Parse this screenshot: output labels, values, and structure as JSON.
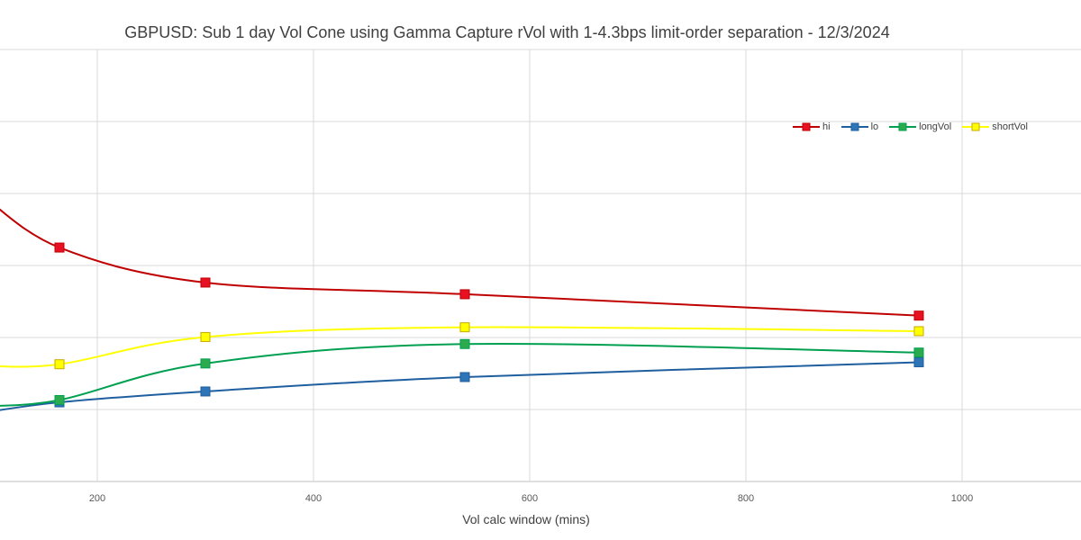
{
  "chart_data": {
    "type": "line",
    "title": "GBPUSD: Sub 1 day Vol Cone using Gamma Capture rVol with 1-4.3bps limit-order separation - 12/3/2024",
    "xlabel": "Vol calc window (mins)",
    "ylabel": "",
    "x_ticks": [
      200,
      400,
      600,
      800,
      1000
    ],
    "xlim": [
      110,
      1110
    ],
    "grid": true,
    "legend_position": "top-right",
    "x": [
      165,
      300,
      540,
      960
    ],
    "series": [
      {
        "name": "hi",
        "color": "#C00000",
        "marker_fill": "#E81123",
        "values": [
          0.62,
          0.53,
          0.5,
          0.445
        ]
      },
      {
        "name": "lo",
        "color": "#1F5FA0",
        "marker_fill": "#2E75B6",
        "values": [
          0.222,
          0.25,
          0.287,
          0.325
        ]
      },
      {
        "name": "longVol",
        "color": "#00A050",
        "marker_fill": "#2BAA4E",
        "values": [
          0.228,
          0.322,
          0.372,
          0.35
        ]
      },
      {
        "name": "shortVol",
        "color": "#FFFF00",
        "marker_fill": "#FFFF00",
        "values": [
          0.32,
          0.39,
          0.415,
          0.405
        ]
      }
    ]
  }
}
